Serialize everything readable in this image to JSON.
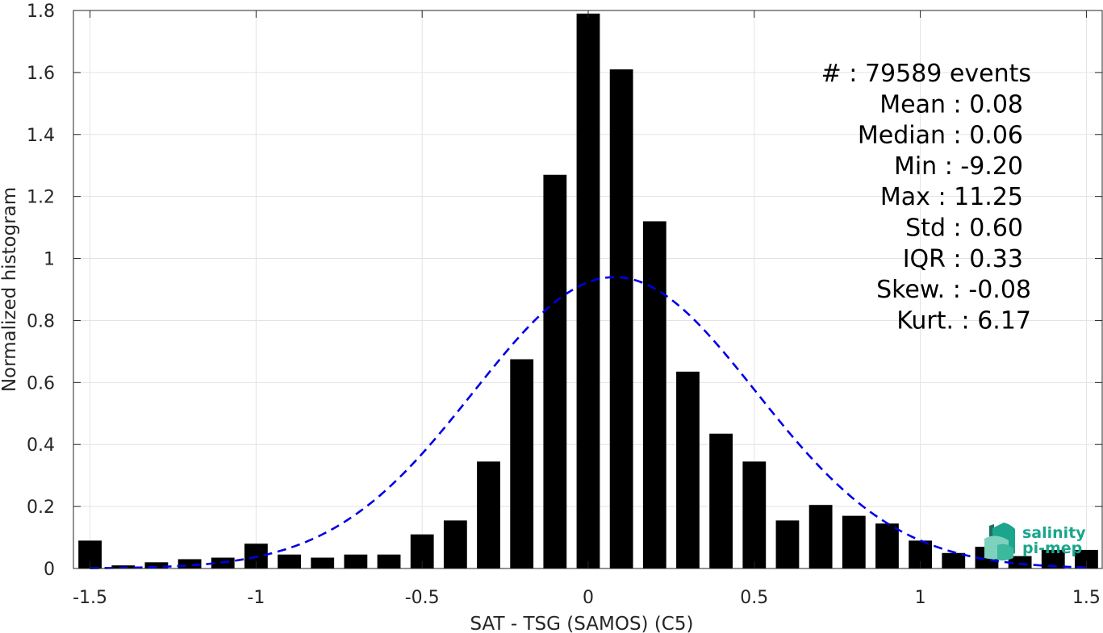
{
  "chart_data": {
    "type": "bar",
    "xlabel": "SAT - TSG (SAMOS) (C5)",
    "ylabel": "Normalized histogram",
    "xlim": [
      -1.55,
      1.55
    ],
    "ylim": [
      0,
      1.8
    ],
    "xticks": [
      -1.5,
      -1,
      -0.5,
      0,
      0.5,
      1,
      1.5
    ],
    "xtick_labels": [
      "-1.5",
      "-1",
      "-0.5",
      "0",
      "0.5",
      "1",
      "1.5"
    ],
    "yticks": [
      0,
      0.2,
      0.4,
      0.6,
      0.8,
      1,
      1.2,
      1.4,
      1.6,
      1.8
    ],
    "ytick_labels": [
      "0",
      "0.2",
      "0.4",
      "0.6",
      "0.8",
      "1",
      "1.2",
      "1.4",
      "1.6",
      "1.8"
    ],
    "grid": true,
    "bar_width": 0.07,
    "bar_color": "#000000",
    "bins": [
      {
        "x": -1.5,
        "y": 0.09
      },
      {
        "x": -1.4,
        "y": 0.01
      },
      {
        "x": -1.3,
        "y": 0.02
      },
      {
        "x": -1.2,
        "y": 0.03
      },
      {
        "x": -1.1,
        "y": 0.035
      },
      {
        "x": -1.0,
        "y": 0.08
      },
      {
        "x": -0.9,
        "y": 0.045
      },
      {
        "x": -0.8,
        "y": 0.035
      },
      {
        "x": -0.7,
        "y": 0.045
      },
      {
        "x": -0.6,
        "y": 0.045
      },
      {
        "x": -0.5,
        "y": 0.11
      },
      {
        "x": -0.4,
        "y": 0.155
      },
      {
        "x": -0.3,
        "y": 0.345
      },
      {
        "x": -0.2,
        "y": 0.675
      },
      {
        "x": -0.1,
        "y": 1.27
      },
      {
        "x": 0.0,
        "y": 1.79
      },
      {
        "x": 0.1,
        "y": 1.61
      },
      {
        "x": 0.2,
        "y": 1.12
      },
      {
        "x": 0.3,
        "y": 0.635
      },
      {
        "x": 0.4,
        "y": 0.435
      },
      {
        "x": 0.5,
        "y": 0.345
      },
      {
        "x": 0.6,
        "y": 0.155
      },
      {
        "x": 0.7,
        "y": 0.205
      },
      {
        "x": 0.8,
        "y": 0.17
      },
      {
        "x": 0.9,
        "y": 0.145
      },
      {
        "x": 1.0,
        "y": 0.09
      },
      {
        "x": 1.1,
        "y": 0.05
      },
      {
        "x": 1.2,
        "y": 0.07
      },
      {
        "x": 1.3,
        "y": 0.04
      },
      {
        "x": 1.4,
        "y": 0.06
      },
      {
        "x": 1.5,
        "y": 0.06
      }
    ],
    "fit_curve": {
      "type": "gaussian",
      "style": "dashed",
      "color": "#0000e6",
      "mean": 0.08,
      "std": 0.425,
      "peak": 0.94,
      "x_range": [
        -1.5,
        1.5
      ]
    },
    "stats_annotation": [
      "#  : 79589 events",
      "Mean : 0.08",
      "Median : 0.06",
      "Min : -9.20",
      "Max : 11.25",
      "Std : 0.60",
      "IQR : 0.33",
      "Skew. : -0.08",
      "Kurt. : 6.17"
    ]
  },
  "logo": {
    "line1": "salinity",
    "line2": "pi-mep",
    "colors": [
      "#1aa58c",
      "#3cb89c",
      "#7dd1bd",
      "#1f6f63"
    ]
  }
}
